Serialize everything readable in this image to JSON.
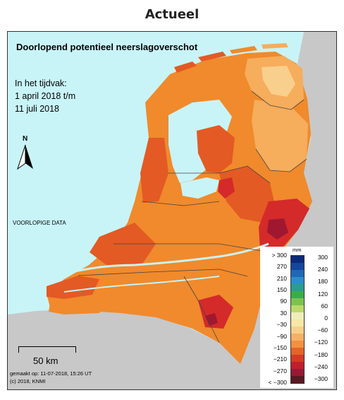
{
  "page_title": "Actueel",
  "map": {
    "title": "Doorlopend potentieel neerslagoverschot",
    "period_lines": [
      "In het tijdvak:",
      "1 april 2018 t/m",
      "11 juli 2018"
    ],
    "preliminary": "VOORLOPIGE DATA",
    "north_label": "N",
    "scale_label": "50 km",
    "made_on": "gemaakt op: 11-07-2018, 15:26 UT",
    "copyright": "(c) 2018, KNMI",
    "colors": {
      "sea": "#c8f4f8",
      "foreign_land": "#c8c8c8",
      "orange_light": "#f6ad5c",
      "orange": "#f08a2c",
      "red_orange": "#e35a24",
      "red": "#d42a2a",
      "dark_red": "#a01830",
      "pale": "#f9cf8e",
      "border": "#444444"
    }
  },
  "legend": {
    "unit": "mm",
    "left_labels": [
      "> 300",
      "270",
      "210",
      "150",
      "90",
      "30",
      "−30",
      "−90",
      "−150",
      "−210",
      "−270",
      "< −300"
    ],
    "right_labels": [
      "300",
      "240",
      "180",
      "120",
      "60",
      "0",
      "−60",
      "−120",
      "−180",
      "−240",
      "−300"
    ],
    "colors": [
      "#0b2a7a",
      "#14469c",
      "#1e68b6",
      "#2b8ecb",
      "#2a9e8a",
      "#39ac4a",
      "#7cc250",
      "#bbd96a",
      "#eeeeb8",
      "#f9e6a8",
      "#f9d08a",
      "#f6b066",
      "#f39040",
      "#e4642a",
      "#d53a26",
      "#c21e2c",
      "#9a1836",
      "#5a1a22"
    ]
  }
}
